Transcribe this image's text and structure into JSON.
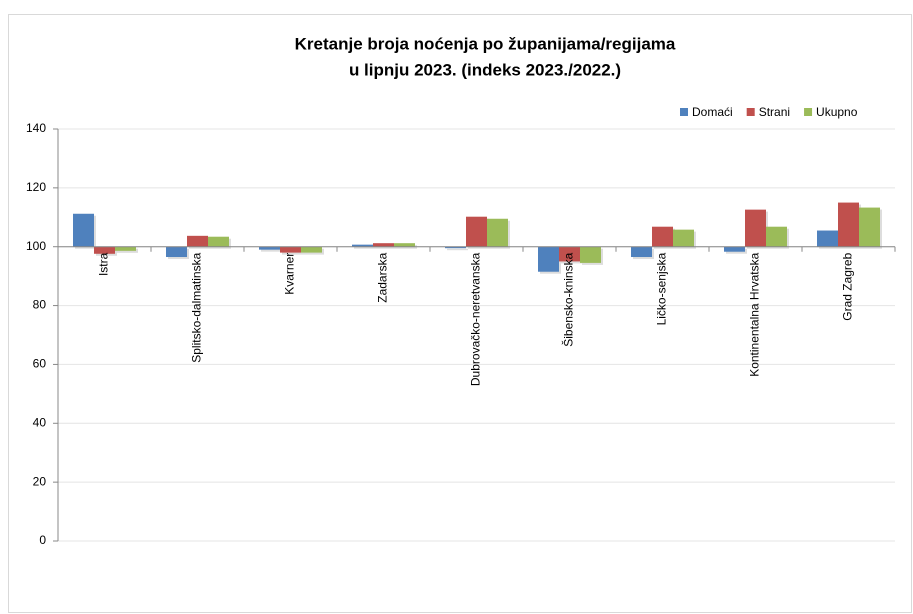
{
  "chart_data": {
    "type": "bar",
    "title": "Kretanje broja noćenja po županijama/regijama",
    "subtitle": "u lipnju 2023.  (indeks 2023./2022.)",
    "categories": [
      "Istra",
      "Splitsko-dalmatinska",
      "Kvarner",
      "Zadarska",
      "Dubrovačko-neretvanska",
      "Šibensko-kninska",
      "Ličko-senjska",
      "Kontinentalna Hrvatska",
      "Grad Zagreb"
    ],
    "series": [
      {
        "name": "Domaći",
        "color": "#4f81bd",
        "values": [
          111.2,
          96.5,
          99,
          100.7,
          99.5,
          91.5,
          96.5,
          98.3,
          105.5
        ]
      },
      {
        "name": "Strani",
        "color": "#c0504d",
        "values": [
          97.6,
          103.7,
          98,
          101.2,
          110.2,
          95,
          106.8,
          112.6,
          115
        ]
      },
      {
        "name": "Ukupno",
        "color": "#9bbb59",
        "values": [
          98.6,
          103.4,
          98,
          101.2,
          109.5,
          94.5,
          105.8,
          106.8,
          113.3
        ]
      }
    ],
    "ylim": [
      0,
      140
    ],
    "yticks": [
      0,
      20,
      40,
      60,
      80,
      100,
      120,
      140
    ],
    "x_axis_crossing": 100,
    "grid": true,
    "legend": "top-right"
  }
}
